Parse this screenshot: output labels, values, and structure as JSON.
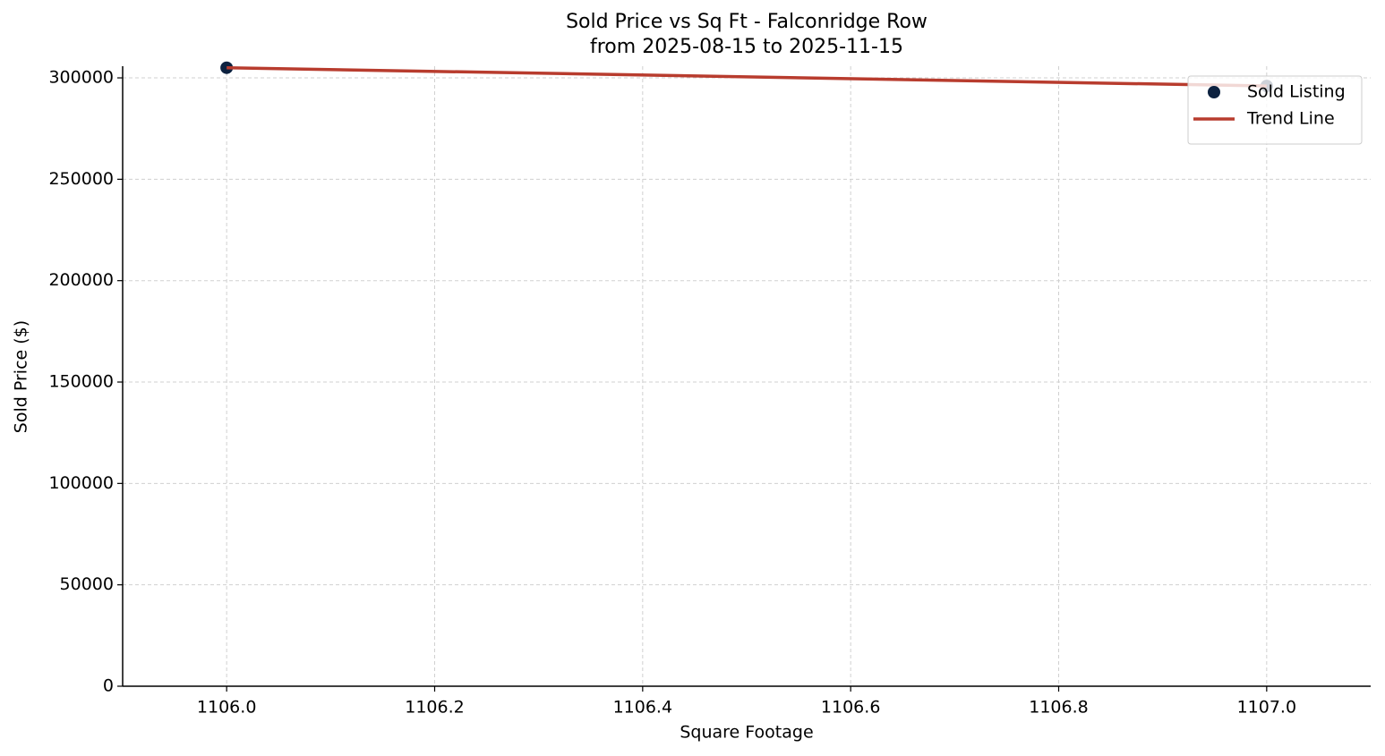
{
  "chart_data": {
    "type": "scatter",
    "title": "Sold Price vs Sq Ft - Falconridge Row",
    "subtitle": "from 2025-08-15 to 2025-11-15",
    "x_label": "Square Footage",
    "y_label": "Sold Price ($)",
    "series": [
      {
        "name": "Sold Listing",
        "type": "scatter",
        "color": "#0d2240",
        "x": [
          1106,
          1107
        ],
        "values": [
          305000,
          296000
        ]
      },
      {
        "name": "Trend Line",
        "type": "line",
        "color": "#b83c2e",
        "x": [
          1106,
          1107
        ],
        "values": [
          305000,
          296000
        ]
      }
    ],
    "xlim": [
      1105.9,
      1107.1
    ],
    "ylim": [
      0,
      305750
    ],
    "xticks": [
      {
        "value": 1106,
        "label": "1106.0"
      },
      {
        "value": 1106.2,
        "label": "1106.2"
      },
      {
        "value": 1106.4,
        "label": "1106.4"
      },
      {
        "value": 1106.6,
        "label": "1106.6"
      },
      {
        "value": 1106.8,
        "label": "1106.8"
      },
      {
        "value": 1107,
        "label": "1107.0"
      }
    ],
    "yticks": [
      0,
      50000,
      100000,
      150000,
      200000,
      250000,
      300000
    ],
    "grid": true,
    "legend": "upper right"
  }
}
